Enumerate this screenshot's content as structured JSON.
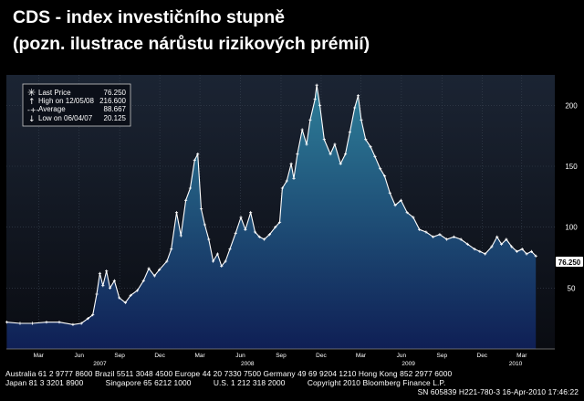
{
  "header": {
    "title_line1": "CDS - index investičního stupně",
    "title_line2": "(pozn. ilustrace nárůstu rizikových prémií)"
  },
  "colors": {
    "plot_bg_top": "#1b2433",
    "plot_bg_bottom": "#0a0c12",
    "area_top": "#2e7f99",
    "area_bottom": "#0f1f55",
    "line": "#ffffff",
    "grid": "#3a4452",
    "last_value_tag_bg": "#ffffff",
    "last_value_tag_text": "#000000"
  },
  "legend": {
    "position": "top-left",
    "rows": [
      {
        "icon": "asterisk-icon",
        "label": "Last Price",
        "value": "76.250"
      },
      {
        "icon": "arrow-up-icon",
        "label": "High on 12/05/08",
        "value": "216.600"
      },
      {
        "icon": "average-icon",
        "label": "Average",
        "value": "88.667"
      },
      {
        "icon": "arrow-down-icon",
        "label": "Low on 06/04/07",
        "value": "20.125"
      }
    ]
  },
  "chart_data": {
    "type": "area",
    "x_start": "2007-01",
    "x_end": "2010-04",
    "x_month_labels": [
      "Mar",
      "Jun",
      "Sep",
      "Dec",
      "Mar",
      "Jun",
      "Sep",
      "Dec",
      "Mar",
      "Jun",
      "Sep",
      "Dec",
      "Mar"
    ],
    "x_year_labels": [
      "2007",
      "2008",
      "2009",
      "2010"
    ],
    "y_ticks": [
      50,
      100,
      150,
      200
    ],
    "ylim": [
      0,
      225
    ],
    "grid": true,
    "last_value_label": "76.250",
    "series": [
      {
        "values": [
          [
            "2007-01-02",
            22
          ],
          [
            "2007-02-01",
            21
          ],
          [
            "2007-03-01",
            21
          ],
          [
            "2007-04-02",
            22
          ],
          [
            "2007-05-01",
            22
          ],
          [
            "2007-06-01",
            20
          ],
          [
            "2007-06-20",
            21
          ],
          [
            "2007-07-05",
            25
          ],
          [
            "2007-07-16",
            28
          ],
          [
            "2007-07-25",
            45
          ],
          [
            "2007-08-01",
            62
          ],
          [
            "2007-08-08",
            52
          ],
          [
            "2007-08-16",
            64
          ],
          [
            "2007-08-24",
            50
          ],
          [
            "2007-09-03",
            56
          ],
          [
            "2007-09-14",
            42
          ],
          [
            "2007-09-28",
            38
          ],
          [
            "2007-10-10",
            44
          ],
          [
            "2007-10-25",
            48
          ],
          [
            "2007-11-08",
            56
          ],
          [
            "2007-11-20",
            66
          ],
          [
            "2007-12-03",
            60
          ],
          [
            "2007-12-14",
            65
          ],
          [
            "2007-12-31",
            72
          ],
          [
            "2008-01-10",
            82
          ],
          [
            "2008-01-22",
            112
          ],
          [
            "2008-02-01",
            93
          ],
          [
            "2008-02-12",
            122
          ],
          [
            "2008-02-22",
            132
          ],
          [
            "2008-03-03",
            155
          ],
          [
            "2008-03-10",
            160
          ],
          [
            "2008-03-18",
            115
          ],
          [
            "2008-03-26",
            102
          ],
          [
            "2008-04-04",
            90
          ],
          [
            "2008-04-14",
            72
          ],
          [
            "2008-04-24",
            78
          ],
          [
            "2008-05-03",
            68
          ],
          [
            "2008-05-12",
            72
          ],
          [
            "2008-05-22",
            82
          ],
          [
            "2008-06-04",
            95
          ],
          [
            "2008-06-16",
            108
          ],
          [
            "2008-06-26",
            98
          ],
          [
            "2008-07-08",
            112
          ],
          [
            "2008-07-18",
            96
          ],
          [
            "2008-07-28",
            92
          ],
          [
            "2008-08-08",
            90
          ],
          [
            "2008-08-20",
            94
          ],
          [
            "2008-09-02",
            100
          ],
          [
            "2008-09-12",
            104
          ],
          [
            "2008-09-18",
            132
          ],
          [
            "2008-09-28",
            138
          ],
          [
            "2008-10-08",
            152
          ],
          [
            "2008-10-14",
            140
          ],
          [
            "2008-10-22",
            160
          ],
          [
            "2008-11-02",
            180
          ],
          [
            "2008-11-12",
            168
          ],
          [
            "2008-11-20",
            188
          ],
          [
            "2008-12-01",
            205
          ],
          [
            "2008-12-05",
            216.6
          ],
          [
            "2008-12-12",
            200
          ],
          [
            "2008-12-22",
            172
          ],
          [
            "2009-01-05",
            160
          ],
          [
            "2009-01-15",
            168
          ],
          [
            "2009-01-28",
            152
          ],
          [
            "2009-02-08",
            160
          ],
          [
            "2009-02-18",
            178
          ],
          [
            "2009-03-01",
            198
          ],
          [
            "2009-03-09",
            208
          ],
          [
            "2009-03-16",
            188
          ],
          [
            "2009-03-26",
            172
          ],
          [
            "2009-04-06",
            166
          ],
          [
            "2009-04-16",
            158
          ],
          [
            "2009-04-28",
            148
          ],
          [
            "2009-05-08",
            142
          ],
          [
            "2009-05-20",
            128
          ],
          [
            "2009-06-01",
            118
          ],
          [
            "2009-06-14",
            122
          ],
          [
            "2009-06-28",
            112
          ],
          [
            "2009-07-12",
            108
          ],
          [
            "2009-07-26",
            98
          ],
          [
            "2009-08-10",
            96
          ],
          [
            "2009-08-26",
            92
          ],
          [
            "2009-09-10",
            94
          ],
          [
            "2009-09-26",
            90
          ],
          [
            "2009-10-12",
            92
          ],
          [
            "2009-10-28",
            90
          ],
          [
            "2009-11-12",
            86
          ],
          [
            "2009-11-28",
            82
          ],
          [
            "2009-12-10",
            80
          ],
          [
            "2009-12-22",
            78
          ],
          [
            "2010-01-06",
            84
          ],
          [
            "2010-01-18",
            92
          ],
          [
            "2010-01-28",
            86
          ],
          [
            "2010-02-08",
            90
          ],
          [
            "2010-02-20",
            84
          ],
          [
            "2010-03-04",
            80
          ],
          [
            "2010-03-16",
            82
          ],
          [
            "2010-03-26",
            78
          ],
          [
            "2010-04-06",
            80
          ],
          [
            "2010-04-16",
            76.25
          ]
        ]
      }
    ]
  },
  "footer": {
    "line1": "Australia 61 2 9777 8600 Brazil 5511 3048 4500 Europe 44 20 7330 7500 Germany 49 69 9204 1210 Hong Kong 852 2977 6000",
    "line2": "Japan 81 3 3201 8900          Singapore 65 6212 1000          U.S. 1 212 318 2000          Copyright 2010 Bloomberg Finance L.P.",
    "line3": "SN 605839 H221-780-3 16-Apr-2010 17:46:22"
  }
}
